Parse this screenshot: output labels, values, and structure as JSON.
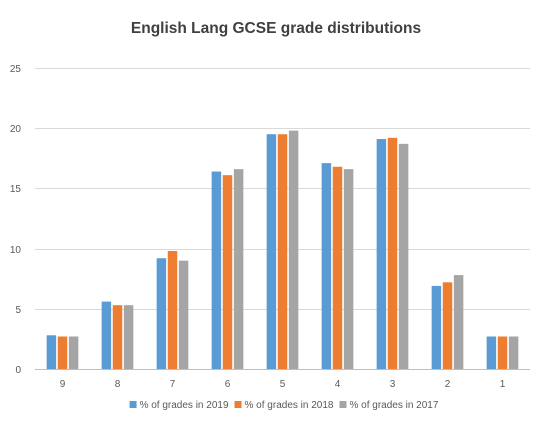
{
  "chart_data": {
    "type": "bar",
    "title": "English Lang GCSE grade distributions",
    "xlabel": "",
    "ylabel": "",
    "categories": [
      "9",
      "8",
      "7",
      "6",
      "5",
      "4",
      "3",
      "2",
      "1"
    ],
    "ylim": [
      0,
      25
    ],
    "yticks": [
      0,
      5,
      10,
      15,
      20,
      25
    ],
    "grid": true,
    "legend_position": "bottom",
    "series": [
      {
        "name": "% of grades in 2019",
        "color": "#5B9BD5",
        "values": [
          2.8,
          5.6,
          9.2,
          16.4,
          19.5,
          17.1,
          19.1,
          6.9,
          2.7
        ]
      },
      {
        "name": "% of grades in 2018",
        "color": "#ED7D31",
        "values": [
          2.7,
          5.3,
          9.8,
          16.1,
          19.5,
          16.8,
          19.2,
          7.2,
          2.7
        ]
      },
      {
        "name": "% of grades in 2017",
        "color": "#A5A5A5",
        "values": [
          2.7,
          5.3,
          9.0,
          16.6,
          19.8,
          16.6,
          18.7,
          7.8,
          2.7
        ]
      }
    ],
    "gridline_color": "#D9D9D9",
    "axis_line_color": "#BFBFBF"
  }
}
